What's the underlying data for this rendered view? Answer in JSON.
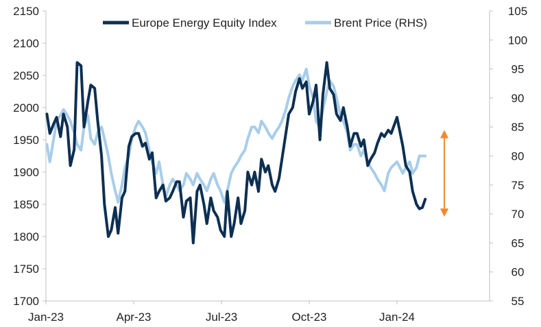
{
  "chart_data": {
    "type": "line",
    "title": "",
    "xlabel": "",
    "ylabel": "",
    "y2label": "",
    "x_ticks": [
      "Jan-23",
      "Apr-23",
      "Jul-23",
      "Oct-23",
      "Jan-24"
    ],
    "ylim": [
      1700,
      2150
    ],
    "y_ticks": [
      1700,
      1750,
      1800,
      1850,
      1900,
      1950,
      2000,
      2050,
      2100,
      2150
    ],
    "y2lim": [
      55,
      105
    ],
    "y2_ticks": [
      55,
      60,
      65,
      70,
      75,
      80,
      85,
      90,
      95,
      100,
      105
    ],
    "grid": false,
    "legend_position": "top",
    "annotation": {
      "type": "double-arrow",
      "color": "#F0892B",
      "from_y2": 70,
      "to_y2": 84
    },
    "series": [
      {
        "name": "Europe Energy Equity Index",
        "axis": "left",
        "color": "#0D2F52",
        "x": [
          "2023-01-02",
          "2023-01-05",
          "2023-01-09",
          "2023-01-12",
          "2023-01-16",
          "2023-01-19",
          "2023-01-23",
          "2023-01-26",
          "2023-01-30",
          "2023-02-02",
          "2023-02-06",
          "2023-02-09",
          "2023-02-13",
          "2023-02-16",
          "2023-02-20",
          "2023-02-23",
          "2023-02-27",
          "2023-03-02",
          "2023-03-06",
          "2023-03-09",
          "2023-03-13",
          "2023-03-16",
          "2023-03-20",
          "2023-03-23",
          "2023-03-27",
          "2023-03-30",
          "2023-04-03",
          "2023-04-06",
          "2023-04-10",
          "2023-04-13",
          "2023-04-17",
          "2023-04-20",
          "2023-04-24",
          "2023-04-27",
          "2023-05-01",
          "2023-05-04",
          "2023-05-08",
          "2023-05-11",
          "2023-05-15",
          "2023-05-18",
          "2023-05-22",
          "2023-05-25",
          "2023-05-29",
          "2023-06-01",
          "2023-06-05",
          "2023-06-08",
          "2023-06-12",
          "2023-06-15",
          "2023-06-19",
          "2023-06-22",
          "2023-06-26",
          "2023-06-29",
          "2023-07-03",
          "2023-07-06",
          "2023-07-10",
          "2023-07-13",
          "2023-07-17",
          "2023-07-20",
          "2023-07-24",
          "2023-07-27",
          "2023-07-31",
          "2023-08-03",
          "2023-08-07",
          "2023-08-10",
          "2023-08-14",
          "2023-08-17",
          "2023-08-21",
          "2023-08-24",
          "2023-08-28",
          "2023-08-31",
          "2023-09-04",
          "2023-09-07",
          "2023-09-11",
          "2023-09-14",
          "2023-09-18",
          "2023-09-21",
          "2023-09-25",
          "2023-09-28",
          "2023-10-02",
          "2023-10-05",
          "2023-10-09",
          "2023-10-12",
          "2023-10-16",
          "2023-10-19",
          "2023-10-23",
          "2023-10-26",
          "2023-10-30",
          "2023-11-02",
          "2023-11-06",
          "2023-11-09",
          "2023-11-13",
          "2023-11-16",
          "2023-11-20",
          "2023-11-23",
          "2023-11-27",
          "2023-11-30",
          "2023-12-04",
          "2023-12-07",
          "2023-12-11",
          "2023-12-14",
          "2023-12-18",
          "2023-12-21",
          "2023-12-27",
          "2024-01-02",
          "2024-01-05",
          "2024-01-09",
          "2024-01-12",
          "2024-01-16",
          "2024-01-19",
          "2024-01-22",
          "2024-01-25"
        ],
        "values": [
          1990,
          1960,
          1975,
          1985,
          1955,
          1990,
          1970,
          1910,
          1935,
          2070,
          2065,
          1970,
          2010,
          2035,
          2030,
          1980,
          1925,
          1850,
          1800,
          1810,
          1845,
          1805,
          1860,
          1870,
          1940,
          1955,
          1960,
          1960,
          1940,
          1945,
          1920,
          1930,
          1860,
          1870,
          1880,
          1855,
          1860,
          1870,
          1885,
          1885,
          1830,
          1855,
          1860,
          1790,
          1870,
          1880,
          1850,
          1820,
          1860,
          1840,
          1830,
          1810,
          1800,
          1870,
          1800,
          1820,
          1860,
          1820,
          1840,
          1900,
          1880,
          1900,
          1870,
          1920,
          1900,
          1910,
          1880,
          1870,
          1890,
          1920,
          1960,
          1990,
          2000,
          2025,
          2045,
          2030,
          2040,
          1990,
          2010,
          2035,
          1950,
          2020,
          2070,
          2030,
          2020,
          1990,
          1980,
          2000,
          1970,
          1940,
          1960,
          1960,
          1940,
          1950,
          1910,
          1920,
          1930,
          1945,
          1960,
          1955,
          1965,
          1960,
          1985,
          1940,
          1910,
          1900,
          1870,
          1850,
          1843,
          1845,
          1858
        ]
      },
      {
        "name": "Brent Price (RHS)",
        "axis": "right",
        "color": "#A8CDE9",
        "x": [
          "2023-01-02",
          "2023-01-05",
          "2023-01-09",
          "2023-01-12",
          "2023-01-16",
          "2023-01-19",
          "2023-01-23",
          "2023-01-26",
          "2023-01-30",
          "2023-02-02",
          "2023-02-06",
          "2023-02-09",
          "2023-02-13",
          "2023-02-16",
          "2023-02-20",
          "2023-02-23",
          "2023-02-27",
          "2023-03-02",
          "2023-03-06",
          "2023-03-09",
          "2023-03-13",
          "2023-03-16",
          "2023-03-20",
          "2023-03-23",
          "2023-03-27",
          "2023-03-30",
          "2023-04-03",
          "2023-04-06",
          "2023-04-10",
          "2023-04-13",
          "2023-04-17",
          "2023-04-20",
          "2023-04-24",
          "2023-04-27",
          "2023-05-01",
          "2023-05-04",
          "2023-05-08",
          "2023-05-11",
          "2023-05-15",
          "2023-05-18",
          "2023-05-22",
          "2023-05-25",
          "2023-05-29",
          "2023-06-01",
          "2023-06-05",
          "2023-06-08",
          "2023-06-12",
          "2023-06-15",
          "2023-06-19",
          "2023-06-22",
          "2023-06-26",
          "2023-06-29",
          "2023-07-03",
          "2023-07-06",
          "2023-07-10",
          "2023-07-13",
          "2023-07-17",
          "2023-07-20",
          "2023-07-24",
          "2023-07-27",
          "2023-07-31",
          "2023-08-03",
          "2023-08-07",
          "2023-08-10",
          "2023-08-14",
          "2023-08-17",
          "2023-08-21",
          "2023-08-24",
          "2023-08-28",
          "2023-08-31",
          "2023-09-04",
          "2023-09-07",
          "2023-09-11",
          "2023-09-14",
          "2023-09-18",
          "2023-09-21",
          "2023-09-25",
          "2023-09-28",
          "2023-10-02",
          "2023-10-05",
          "2023-10-09",
          "2023-10-12",
          "2023-10-16",
          "2023-10-19",
          "2023-10-23",
          "2023-10-26",
          "2023-10-30",
          "2023-11-02",
          "2023-11-06",
          "2023-11-09",
          "2023-11-13",
          "2023-11-16",
          "2023-11-20",
          "2023-11-23",
          "2023-11-27",
          "2023-11-30",
          "2023-12-04",
          "2023-12-07",
          "2023-12-11",
          "2023-12-14",
          "2023-12-18",
          "2023-12-21",
          "2023-12-27",
          "2024-01-02",
          "2024-01-05",
          "2024-01-09",
          "2024-01-12",
          "2024-01-16",
          "2024-01-19",
          "2024-01-22",
          "2024-01-25"
        ],
        "values": [
          82,
          79,
          83,
          86,
          87,
          88,
          87,
          86,
          84,
          82,
          81,
          85,
          87,
          83,
          82,
          84,
          85,
          83,
          80,
          77,
          74,
          72,
          75,
          78,
          80,
          83,
          85,
          86,
          85,
          84,
          81,
          79,
          77,
          79,
          75,
          73,
          75,
          76,
          75,
          74,
          75,
          77,
          76,
          75,
          77,
          76,
          75,
          74,
          76,
          77,
          75,
          74,
          72,
          74,
          77,
          78,
          79,
          80,
          81,
          83,
          85,
          85,
          84,
          86,
          85,
          84,
          83,
          84,
          85,
          86,
          88,
          90,
          92,
          93,
          94,
          93,
          95,
          92,
          90,
          86,
          85,
          88,
          91,
          93,
          92,
          90,
          87,
          86,
          84,
          81,
          82,
          82,
          80,
          81,
          79,
          78,
          77,
          76,
          75,
          74,
          77,
          78,
          79,
          77,
          78,
          79,
          77,
          78,
          80,
          80,
          80
        ]
      }
    ]
  }
}
